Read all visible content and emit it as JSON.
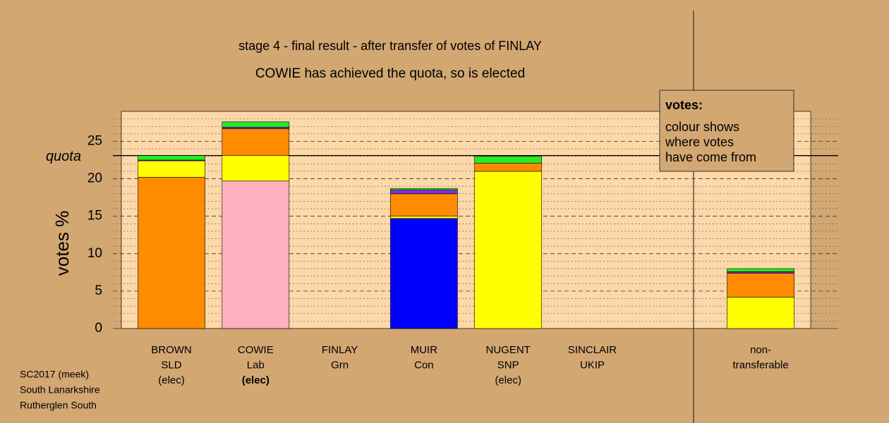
{
  "chart_data": {
    "type": "stacked_bar",
    "title": "stage 4 - final result - after transfer of votes of FINLAY",
    "subtitle": "COWIE has achieved the quota, so is elected",
    "ylabel": "votes %",
    "categories": [
      [
        "BROWN",
        "SLD",
        "(elec)"
      ],
      [
        "COWIE",
        "Lab",
        "(elec)"
      ],
      [
        "FINLAY",
        "Grn"
      ],
      [
        "MUIR",
        "Con"
      ],
      [
        "NUGENT",
        "SNP",
        "(elec)"
      ],
      [
        "SINCLAIR",
        "UKIP"
      ],
      [
        "non-",
        "transferable"
      ]
    ],
    "series": [
      {
        "color": "#ffb0c0",
        "values": [
          0,
          19.7,
          0,
          0,
          0,
          0,
          0
        ]
      },
      {
        "color": "#0000ff",
        "values": [
          0,
          0,
          0,
          14.7,
          0,
          0,
          0
        ]
      },
      {
        "color": "#ffff00",
        "values": [
          2.2,
          3.4,
          0,
          0.3,
          21.0,
          0,
          4.2
        ]
      },
      {
        "color": "#ff8c00",
        "values": [
          20.2,
          3.6,
          0,
          3.0,
          1.1,
          0,
          3.2
        ]
      },
      {
        "color": "#8a2be2",
        "values": [
          0.1,
          0.2,
          0,
          0.5,
          0,
          0,
          0.2
        ]
      },
      {
        "color": "#22ee22",
        "values": [
          0.6,
          0.7,
          0,
          0.2,
          0.9,
          0,
          0.4
        ]
      }
    ],
    "ylim": [
      0,
      29
    ],
    "yticks": [
      0,
      5,
      10,
      15,
      20,
      25
    ],
    "minor_tick_step": 1,
    "quota": {
      "value": 23.1,
      "label": "quota"
    },
    "legend": {
      "title": "votes:",
      "lines": [
        "colour shows",
        "where votes",
        "have come from"
      ]
    },
    "notes": [
      "SC2017 (meek)",
      "South Lanarkshire",
      "Rutherglen South"
    ]
  }
}
